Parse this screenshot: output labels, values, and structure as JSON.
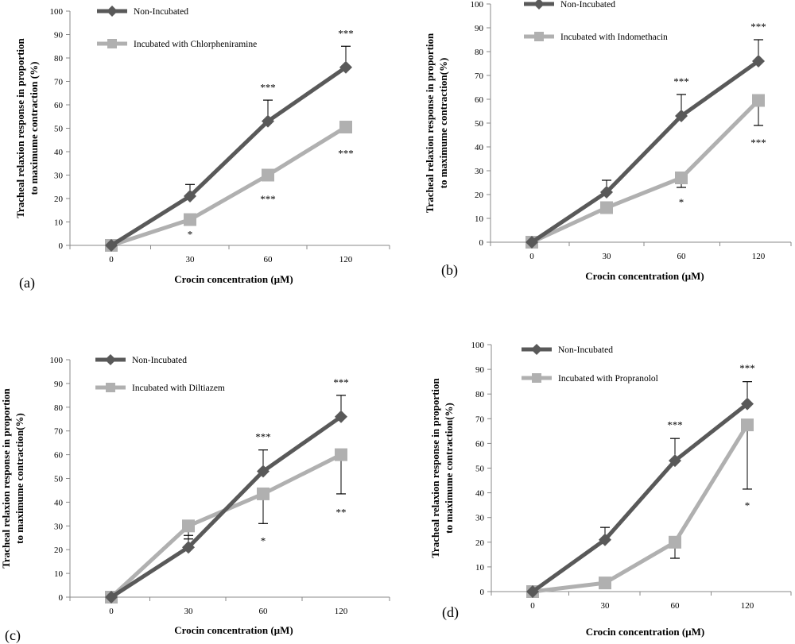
{
  "chart_data": [
    {
      "type": "line",
      "panel_label": "(a)",
      "categories": [
        "0",
        "30",
        "60",
        "120"
      ],
      "xlabel": "Crocin concentration (µM)",
      "ylabel": [
        "Tracheal relaxion response in proportion",
        "to maximume contraction (%)"
      ],
      "ylim": [
        0,
        100
      ],
      "yticks": [
        0,
        10,
        20,
        30,
        40,
        50,
        60,
        70,
        80,
        90,
        100
      ],
      "legend_position": "top-left",
      "grid": false,
      "series": [
        {
          "name": "Non-Incubated",
          "color": "#595959",
          "marker": "diamond",
          "values": [
            0,
            21,
            53,
            76
          ],
          "error_upper": [
            0,
            26,
            62,
            85
          ]
        },
        {
          "name": "Incubated with Chlorpheniramine",
          "color": "#b0b0b0",
          "marker": "square",
          "values": [
            0,
            11,
            30,
            50.5
          ],
          "error_upper": [
            0,
            11,
            30,
            50.5
          ]
        }
      ],
      "annotations": [
        {
          "text": "***",
          "x": "60",
          "y": 66,
          "side": "above"
        },
        {
          "text": "***",
          "x": "120",
          "y": 89,
          "side": "above"
        },
        {
          "text": "*",
          "x": "30",
          "y": 6,
          "side": "below"
        },
        {
          "text": "***",
          "x": "60",
          "y": 21,
          "side": "below"
        },
        {
          "text": "***",
          "x": "120",
          "y": 40.5,
          "side": "below"
        }
      ]
    },
    {
      "type": "line",
      "panel_label": "(b)",
      "categories": [
        "0",
        "30",
        "60",
        "120"
      ],
      "xlabel": "Crocin concentration (µM)",
      "ylabel": [
        "Tracheal relaxion response in proportion",
        "to maximume contraction(%)"
      ],
      "ylim": [
        0,
        100
      ],
      "yticks": [
        0,
        10,
        20,
        30,
        40,
        50,
        60,
        70,
        80,
        90,
        100
      ],
      "legend_position": "top-left",
      "grid": false,
      "series": [
        {
          "name": "Non-Incubated",
          "color": "#595959",
          "marker": "diamond",
          "values": [
            0,
            21,
            53,
            76
          ],
          "error_upper": [
            0,
            26,
            62,
            85
          ]
        },
        {
          "name": "Incubated with Indomethacin",
          "color": "#b0b0b0",
          "marker": "square",
          "values": [
            0,
            14.5,
            27,
            59.5
          ],
          "error_lower": [
            0,
            14.5,
            23,
            49
          ]
        }
      ],
      "annotations": [
        {
          "text": "***",
          "x": "60",
          "y": 66,
          "side": "above"
        },
        {
          "text": "***",
          "x": "120",
          "y": 89,
          "side": "above"
        },
        {
          "text": "*",
          "x": "60",
          "y": 18,
          "side": "below"
        },
        {
          "text": "***",
          "x": "120",
          "y": 43,
          "side": "below"
        }
      ]
    },
    {
      "type": "line",
      "panel_label": "(c)",
      "categories": [
        "0",
        "30",
        "60",
        "120"
      ],
      "xlabel": "Crocin concentration (µM)",
      "ylabel": [
        "Tracheal relaxion response in proportion",
        "to maximume contraction(%)"
      ],
      "ylim": [
        0,
        100
      ],
      "yticks": [
        0,
        10,
        20,
        30,
        40,
        50,
        60,
        70,
        80,
        90,
        100
      ],
      "legend_position": "top-left",
      "grid": false,
      "series": [
        {
          "name": "Non-Incubated",
          "color": "#595959",
          "marker": "diamond",
          "values": [
            0,
            21,
            53,
            76
          ],
          "error_upper": [
            0,
            26,
            62,
            85
          ]
        },
        {
          "name": "Incubated with Diltiazem",
          "color": "#b0b0b0",
          "marker": "square",
          "values": [
            0,
            30,
            43.5,
            60
          ],
          "error_lower": [
            0,
            24.5,
            31,
            43.5
          ]
        }
      ],
      "annotations": [
        {
          "text": "***",
          "x": "60",
          "y": 66,
          "side": "above"
        },
        {
          "text": "***",
          "x": "120",
          "y": 89,
          "side": "above"
        },
        {
          "text": "*",
          "x": "60",
          "y": 25,
          "side": "below"
        },
        {
          "text": "**",
          "x": "120",
          "y": 37,
          "side": "below"
        }
      ]
    },
    {
      "type": "line",
      "panel_label": "(d)",
      "categories": [
        "0",
        "30",
        "60",
        "120"
      ],
      "xlabel": "Crocin concentration (µM)",
      "ylabel": [
        "Tracheal relaxion response in proportion",
        "to maximume contraction(%)"
      ],
      "ylim": [
        0,
        100
      ],
      "yticks": [
        0,
        10,
        20,
        30,
        40,
        50,
        60,
        70,
        80,
        90,
        100
      ],
      "legend_position": "top-left",
      "grid": false,
      "series": [
        {
          "name": "Non-Incubated",
          "color": "#595959",
          "marker": "diamond",
          "values": [
            0,
            21,
            53,
            76
          ],
          "error_upper": [
            0,
            26,
            62,
            85
          ]
        },
        {
          "name": "Incubated with Propranolol",
          "color": "#b0b0b0",
          "marker": "square",
          "values": [
            0,
            3.5,
            20,
            67.5
          ],
          "error_lower": [
            0,
            3.5,
            13.5,
            41.5
          ]
        }
      ],
      "annotations": [
        {
          "text": "***",
          "x": "60",
          "y": 66,
          "side": "above"
        },
        {
          "text": "***",
          "x": "120",
          "y": 89,
          "side": "above"
        },
        {
          "text": "*",
          "x": "120",
          "y": 36,
          "side": "below"
        }
      ]
    }
  ]
}
